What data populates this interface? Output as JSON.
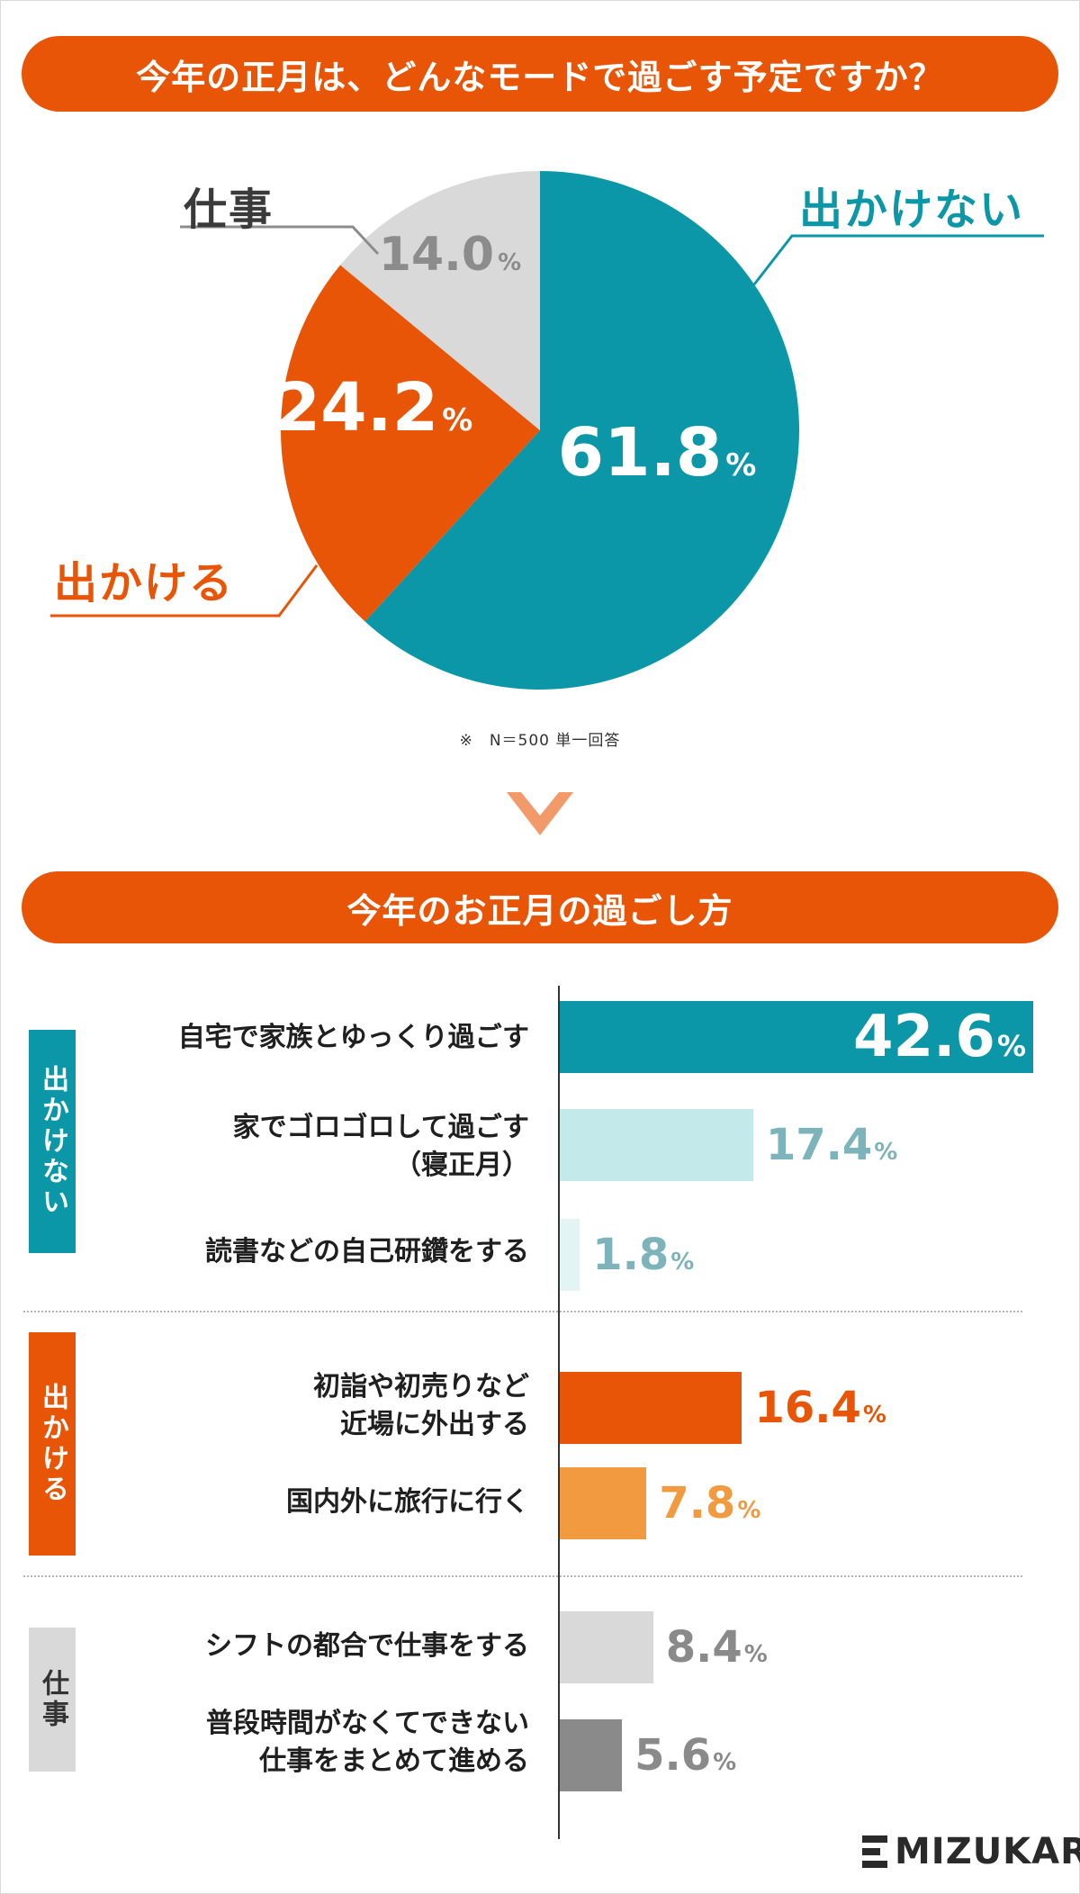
{
  "title": "今年の正月は、どんなモードで過ごす予定ですか？",
  "pie": {
    "labels": {
      "stay": "出かけない",
      "go": "出かける",
      "work": "仕事"
    },
    "note": "※　N＝500 単一回答",
    "pct_unit": "%"
  },
  "section_title": "今年のお正月の過ごし方",
  "groups": {
    "stay": "出かけない",
    "go": "出かける",
    "work": "仕事"
  },
  "categories": [
    {
      "line1": "自宅で家族とゆっくり過ごす",
      "line2": ""
    },
    {
      "line1": "家でゴロゴロして過ごす",
      "line2": "（寝正月）"
    },
    {
      "line1": "読書などの自己研鑽をする",
      "line2": ""
    },
    {
      "line1": "初詣や初売りなど",
      "line2": "近場に外出する"
    },
    {
      "line1": "国内外に旅行に行く",
      "line2": ""
    },
    {
      "line1": "シフトの都合で仕事をする",
      "line2": ""
    },
    {
      "line1": "普段時間がなくてできない",
      "line2": "仕事をまとめて進める"
    }
  ],
  "logo": "MIZUKARA",
  "colors": {
    "teal": "#0b97a8",
    "light_teal": "#c3e9ea",
    "pale_teal": "#e3f4f5",
    "orange": "#e85506",
    "light_orange": "#f29a40",
    "light_gray": "#d9d9d9",
    "dark_gray": "#8a8a8a"
  },
  "chart_data": [
    {
      "type": "pie",
      "categories": [
        "出かけない",
        "出かける",
        "仕事"
      ],
      "values": [
        61.8,
        24.2,
        14.0
      ],
      "title": "今年の正月は、どんなモードで過ごす予定ですか？"
    },
    {
      "type": "bar",
      "orientation": "horizontal",
      "title": "今年のお正月の過ごし方",
      "categories": [
        "自宅で家族とゆっくり過ごす",
        "家でゴロゴロして過ごす（寝正月）",
        "読書などの自己研鑽をする",
        "初詣や初売りなど近場に外出する",
        "国内外に旅行に行く",
        "シフトの都合で仕事をする",
        "普段時間がなくてできない仕事をまとめて進める"
      ],
      "values": [
        42.6,
        17.4,
        1.8,
        16.4,
        7.8,
        8.4,
        5.6
      ],
      "groups": [
        "出かけない",
        "出かけない",
        "出かけない",
        "出かける",
        "出かける",
        "仕事",
        "仕事"
      ],
      "unit": "%"
    }
  ]
}
